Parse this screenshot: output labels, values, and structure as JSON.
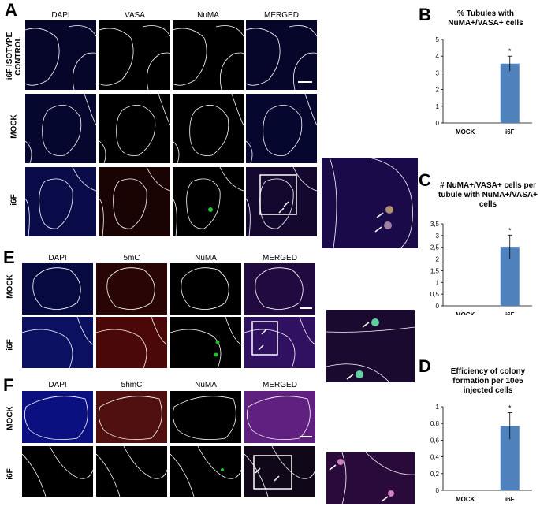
{
  "panel_labels": {
    "A": "A",
    "B": "B",
    "C": "C",
    "D": "D",
    "E": "E",
    "F": "F"
  },
  "panel_a": {
    "columns": [
      "DAPI",
      "VASA",
      "NuMA",
      "MERGED"
    ],
    "rows": [
      "i6F ISOTYPE CONTROL",
      "MOCK",
      "i6F"
    ]
  },
  "panel_e": {
    "columns": [
      "DAPI",
      "5mC",
      "NuMA",
      "MERGED"
    ],
    "rows": [
      "MOCK",
      "i6F"
    ]
  },
  "panel_f": {
    "columns": [
      "DAPI",
      "5hmC",
      "NuMA",
      "MERGED"
    ],
    "rows": [
      "MOCK",
      "i6F"
    ]
  },
  "colors": {
    "bar": "#4f81bd",
    "dapi": "#1a2ab8",
    "red": "#c01a1a",
    "green": "#20c030",
    "merged": "#8a2ab0"
  },
  "chart_data": [
    {
      "id": "B",
      "type": "bar",
      "title": "% Tubules with NuMA+/VASA+ cells",
      "categories": [
        "MOCK",
        "i6F"
      ],
      "values": [
        0,
        3.55
      ],
      "errors": [
        0,
        0.45
      ],
      "ylim": [
        0,
        5
      ],
      "yticks": [
        "0",
        "1",
        "2",
        "3",
        "4",
        "5"
      ],
      "annotations": [
        "*"
      ]
    },
    {
      "id": "C",
      "type": "bar",
      "title": "# NuMA+/VASA+ cells per tubule with NuMA+/VASA+ cells",
      "categories": [
        "MOCK",
        "i6F"
      ],
      "values": [
        0,
        2.52
      ],
      "errors": [
        0,
        0.5
      ],
      "ylim": [
        0,
        3.5
      ],
      "yticks": [
        "0",
        "0,5",
        "1",
        "1,5",
        "2",
        "2,5",
        "3",
        "3,5"
      ],
      "annotations": [
        "*"
      ]
    },
    {
      "id": "D",
      "type": "bar",
      "title": "Efficiency of colony formation per 10e5 injected cells",
      "categories": [
        "MOCK",
        "i6F"
      ],
      "values": [
        0,
        0.77
      ],
      "errors": [
        0,
        0.16
      ],
      "ylim": [
        0,
        1
      ],
      "yticks": [
        "0",
        "0,2",
        "0,4",
        "0,6",
        "0,8",
        "1"
      ],
      "annotations": [
        "*"
      ]
    }
  ]
}
